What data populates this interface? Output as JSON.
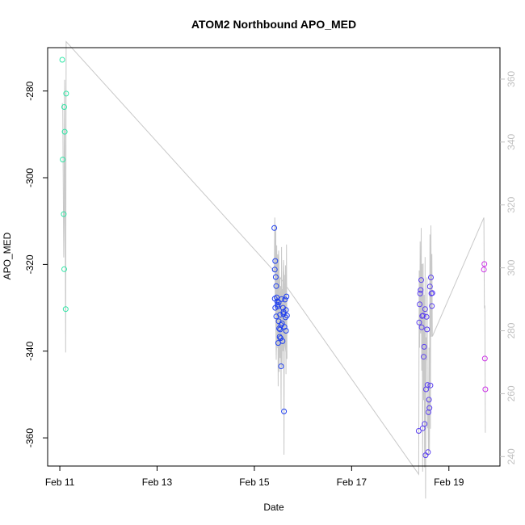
{
  "chart_data": {
    "type": "scatter",
    "title": "ATOM2 Northbound APO_MED",
    "xlabel": "Date",
    "ylabel": "APO_MED",
    "x_ticks": [
      "Feb 11",
      "Feb 13",
      "Feb 15",
      "Feb 17",
      "Feb 19"
    ],
    "x_tick_days": [
      11,
      13,
      15,
      17,
      19
    ],
    "xlim_days": [
      10.75,
      20.05
    ],
    "y_ticks": [
      -280,
      -300,
      -320,
      -340,
      -360
    ],
    "ylim": [
      -366.5,
      -270
    ],
    "y2_ticks": [
      240,
      260,
      280,
      300,
      320,
      340,
      360
    ],
    "y2lim": [
      237,
      370
    ],
    "axis_color_right": "#c0c0c0",
    "line_color": "#c8c8c8",
    "grid": false,
    "series": [
      {
        "color": "#2ee6a6",
        "x": [
          11.05,
          11.06,
          11.08,
          11.09,
          11.09,
          11.1,
          11.12,
          11.13
        ],
        "y": [
          -272.8,
          -295.8,
          -308.4,
          -321.1,
          -283.7,
          -289.4,
          -330.3,
          -280.6
        ]
      },
      {
        "color": "#1f3ff0",
        "x": [
          15.41,
          15.42,
          15.43,
          15.44,
          15.45,
          15.46,
          15.47,
          15.48,
          15.49,
          15.5,
          15.51,
          15.52,
          15.53,
          15.54,
          15.55,
          15.56,
          15.57,
          15.58,
          15.59,
          15.6,
          15.61,
          15.62,
          15.63,
          15.64,
          15.65,
          15.66,
          15.67,
          15.42,
          15.45,
          15.5,
          15.55,
          15.6,
          15.65,
          15.43,
          15.48,
          15.53
        ],
        "y": [
          -311.6,
          -321.2,
          -319.2,
          -322.9,
          -325.0,
          -327.6,
          -328.5,
          -329.7,
          -338.1,
          -333.1,
          -334.8,
          -336.7,
          -331.6,
          -337.0,
          -343.5,
          -328.0,
          -333.6,
          -337.7,
          -330.0,
          -331.4,
          -353.9,
          -334.4,
          -328.1,
          -332.2,
          -335.3,
          -327.4,
          -331.8,
          -327.9,
          -332.0,
          -328.8,
          -334.0,
          -331.0,
          -330.5,
          -330.0,
          -329.3,
          -335.0
        ]
      },
      {
        "color": "#5a3ff0",
        "x": [
          18.38,
          18.39,
          18.4,
          18.41,
          18.42,
          18.43,
          18.44,
          18.45,
          18.46,
          18.47,
          18.48,
          18.49,
          18.5,
          18.51,
          18.52,
          18.53,
          18.54,
          18.55,
          18.56,
          18.57,
          18.58,
          18.59,
          18.6,
          18.61,
          18.62,
          18.63,
          18.64,
          18.65,
          18.66
        ],
        "y": [
          -358.4,
          -333.4,
          -329.2,
          -326.7,
          -325.9,
          -323.6,
          -334.5,
          -331.9,
          -357.8,
          -331.8,
          -341.3,
          -339.0,
          -356.8,
          -330.3,
          -364.0,
          -348.8,
          -332.1,
          -335.0,
          -347.8,
          -363.3,
          -354.1,
          -351.2,
          -353.1,
          -325.1,
          -347.9,
          -323.0,
          -326.7,
          -329.6,
          -326.6
        ]
      },
      {
        "color": "#cc33e6",
        "x": [
          19.72,
          19.73,
          19.74,
          19.75
        ],
        "y": [
          -321.2,
          -319.9,
          -341.7,
          -348.8
        ]
      }
    ]
  }
}
